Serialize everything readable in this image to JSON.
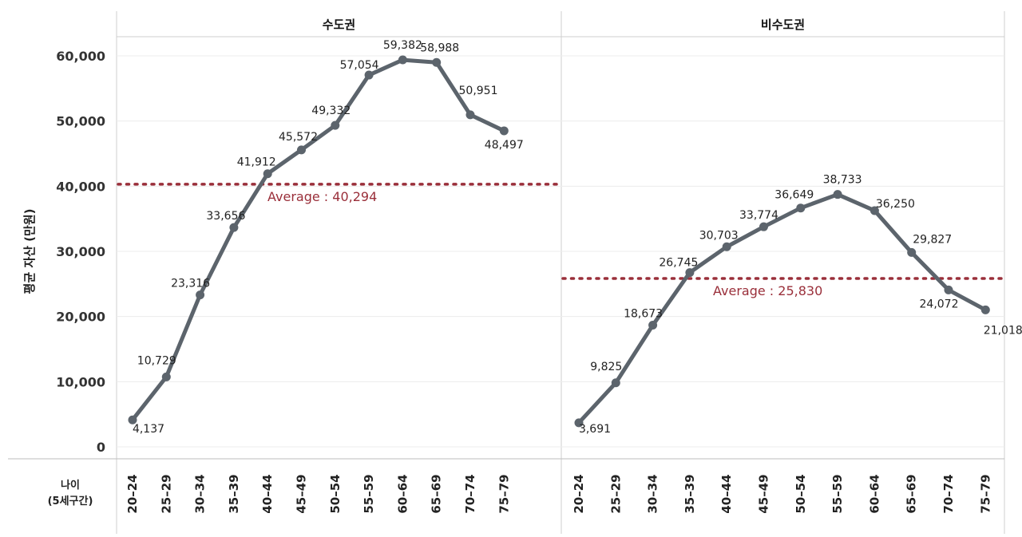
{
  "chart_data": {
    "type": "line",
    "ylabel": "평균 자산 (만원)",
    "xlabel_line1": "나이",
    "xlabel_line2": "(5세구간)",
    "ylim": [
      0,
      60000
    ],
    "yticks": [
      0,
      10000,
      20000,
      30000,
      40000,
      50000,
      60000
    ],
    "ytick_labels": [
      "0",
      "10,000",
      "20,000",
      "30,000",
      "40,000",
      "50,000",
      "60,000"
    ],
    "grid": true,
    "line_color": "#5c646c",
    "avg_color": "#9a2f3a",
    "categories": [
      "20–24",
      "25–29",
      "30–34",
      "35–39",
      "40–44",
      "45–49",
      "50–54",
      "55–59",
      "60–64",
      "65–69",
      "70–74",
      "75–79"
    ],
    "panels": [
      {
        "title": "수도권",
        "values": [
          4137,
          10729,
          23316,
          33656,
          41912,
          45572,
          49332,
          57054,
          59382,
          58988,
          50951,
          48497
        ],
        "labels": [
          "4,137",
          "10,729",
          "23,316",
          "33,656",
          "41,912",
          "45,572",
          "49,332",
          "57,054",
          "59,382",
          "58,988",
          "50,951",
          "48,497"
        ],
        "average": 40294,
        "average_label": "Average : 40,294"
      },
      {
        "title": "비수도권",
        "values": [
          3691,
          9825,
          18673,
          26745,
          30703,
          33774,
          36649,
          38733,
          36250,
          29827,
          24072,
          21018
        ],
        "labels": [
          "3,691",
          "9,825",
          "18,673",
          "26,745",
          "30,703",
          "33,774",
          "36,649",
          "38,733",
          "36,250",
          "29,827",
          "24,072",
          "21,018"
        ],
        "average": 25830,
        "average_label": "Average : 25,830"
      }
    ]
  }
}
